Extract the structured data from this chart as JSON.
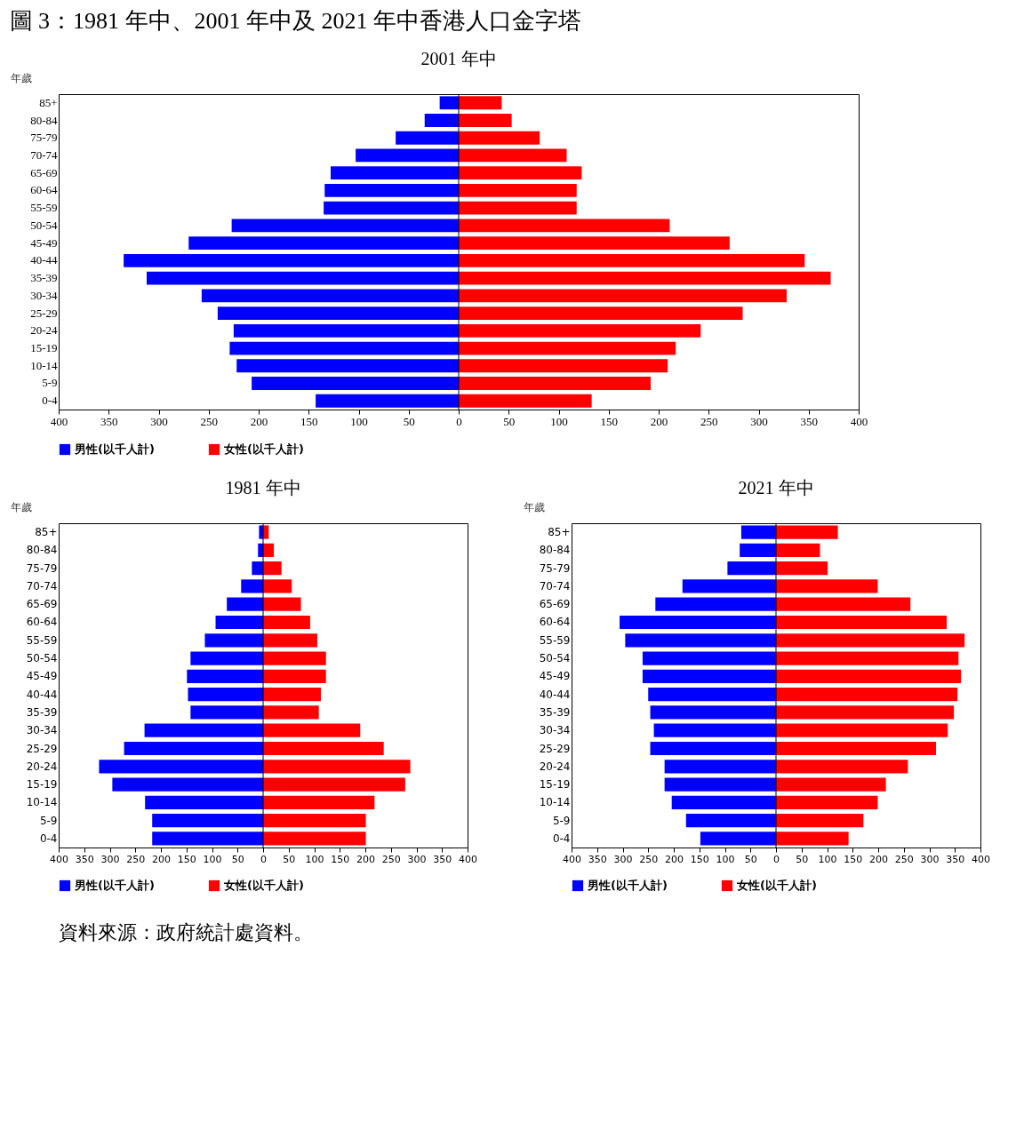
{
  "chart_data": [
    {
      "type": "bar",
      "orientation": "horizontal",
      "stacked": true,
      "title": "2001 年中",
      "ylabel": "年歲",
      "legend": "bottom",
      "grid": false,
      "annotations": [
        "圖 3：1981 年中、2001 年中及 2021 年中香港人口金字塔",
        "資料來源：政府統計處資料。"
      ],
      "categories": [
        "85+",
        "80-84",
        "75-79",
        "70-74",
        "65-69",
        "60-64",
        "55-59",
        "50-54",
        "45-49",
        "40-44",
        "35-39",
        "30-34",
        "25-29",
        "20-24",
        "15-19",
        "10-14",
        "5-9",
        "0-4"
      ],
      "xlim": [
        -400,
        400
      ],
      "xticks": [
        {
          "value": -400,
          "label": "400"
        },
        {
          "value": -350,
          "label": "350"
        },
        {
          "value": -300,
          "label": "300"
        },
        {
          "value": -250,
          "label": "250"
        },
        {
          "value": -200,
          "label": "200"
        },
        {
          "value": -150,
          "label": "150"
        },
        {
          "value": -100,
          "label": "100"
        },
        {
          "value": -50,
          "label": "50"
        },
        0,
        50,
        100,
        150,
        200,
        250,
        300,
        350,
        400
      ],
      "ref_lines": [
        {
          "axis": "x",
          "value": 0,
          "color": "#000000"
        }
      ],
      "series": [
        {
          "name": "男性(以千人計)",
          "color": "#0000ff",
          "values": [
            -19,
            -34,
            -63,
            -103,
            -128,
            -134,
            -135,
            -227,
            -270,
            -335,
            -312,
            -257,
            -241,
            -225,
            -229,
            -222,
            -207,
            -143
          ]
        },
        {
          "name": "女性(以千人計)",
          "color": "#ff0000",
          "values": [
            43,
            53,
            81,
            108,
            123,
            118,
            118,
            211,
            271,
            346,
            372,
            328,
            284,
            242,
            217,
            209,
            192,
            133
          ]
        }
      ]
    },
    {
      "type": "bar",
      "orientation": "horizontal",
      "stacked": true,
      "title": "1981 年中",
      "ylabel": "年歲",
      "legend": "bottom",
      "grid": false,
      "categories": [
        "85+",
        "80-84",
        "75-79",
        "70-74",
        "65-69",
        "60-64",
        "55-59",
        "50-54",
        "45-49",
        "40-44",
        "35-39",
        "30-34",
        "25-29",
        "20-24",
        "15-19",
        "10-14",
        "5-9",
        "0-4"
      ],
      "xlim": [
        -400,
        400
      ],
      "xticks": [
        {
          "value": -400,
          "label": "400"
        },
        {
          "value": -350,
          "label": "350"
        },
        {
          "value": -300,
          "label": "300"
        },
        {
          "value": -250,
          "label": "250"
        },
        {
          "value": -200,
          "label": "200"
        },
        {
          "value": -150,
          "label": "150"
        },
        {
          "value": -100,
          "label": "100"
        },
        {
          "value": -50,
          "label": "50"
        },
        0,
        50,
        100,
        150,
        200,
        250,
        300,
        350,
        400
      ],
      "ref_lines": [
        {
          "axis": "x",
          "value": 0,
          "color": "#000000"
        }
      ],
      "series": [
        {
          "name": "男性(以千人計)",
          "color": "#0000ff",
          "values": [
            -8,
            -10,
            -22,
            -43,
            -71,
            -93,
            -114,
            -142,
            -149,
            -147,
            -142,
            -232,
            -272,
            -321,
            -295,
            -231,
            -217,
            -217
          ]
        },
        {
          "name": "女性(以千人計)",
          "color": "#ff0000",
          "values": [
            11,
            21,
            36,
            56,
            74,
            92,
            106,
            123,
            123,
            113,
            109,
            190,
            236,
            288,
            278,
            218,
            201,
            201
          ]
        }
      ]
    },
    {
      "type": "bar",
      "orientation": "horizontal",
      "stacked": true,
      "title": "2021 年中",
      "ylabel": "年歲",
      "legend": "bottom",
      "grid": false,
      "categories": [
        "85+",
        "80-84",
        "75-79",
        "70-74",
        "65-69",
        "60-64",
        "55-59",
        "50-54",
        "45-49",
        "40-44",
        "35-39",
        "30-34",
        "25-29",
        "20-24",
        "15-19",
        "10-14",
        "5-9",
        "0-4"
      ],
      "xlim": [
        -400,
        400
      ],
      "xticks": [
        {
          "value": -400,
          "label": "400"
        },
        {
          "value": -350,
          "label": "350"
        },
        {
          "value": -300,
          "label": "300"
        },
        {
          "value": -250,
          "label": "250"
        },
        {
          "value": -200,
          "label": "200"
        },
        {
          "value": -150,
          "label": "150"
        },
        {
          "value": -100,
          "label": "100"
        },
        {
          "value": -50,
          "label": "50"
        },
        0,
        50,
        100,
        150,
        200,
        250,
        300,
        350,
        400
      ],
      "ref_lines": [
        {
          "axis": "x",
          "value": 0,
          "color": "#000000"
        }
      ],
      "series": [
        {
          "name": "男性(以千人計)",
          "color": "#0000ff",
          "values": [
            -68,
            -71,
            -95,
            -183,
            -236,
            -306,
            -295,
            -261,
            -261,
            -250,
            -246,
            -239,
            -246,
            -218,
            -218,
            -204,
            -176,
            -148
          ]
        },
        {
          "name": "女性(以千人計)",
          "color": "#ff0000",
          "values": [
            121,
            86,
            101,
            199,
            263,
            334,
            369,
            357,
            362,
            355,
            348,
            336,
            313,
            258,
            215,
            199,
            171,
            142
          ]
        }
      ]
    }
  ]
}
